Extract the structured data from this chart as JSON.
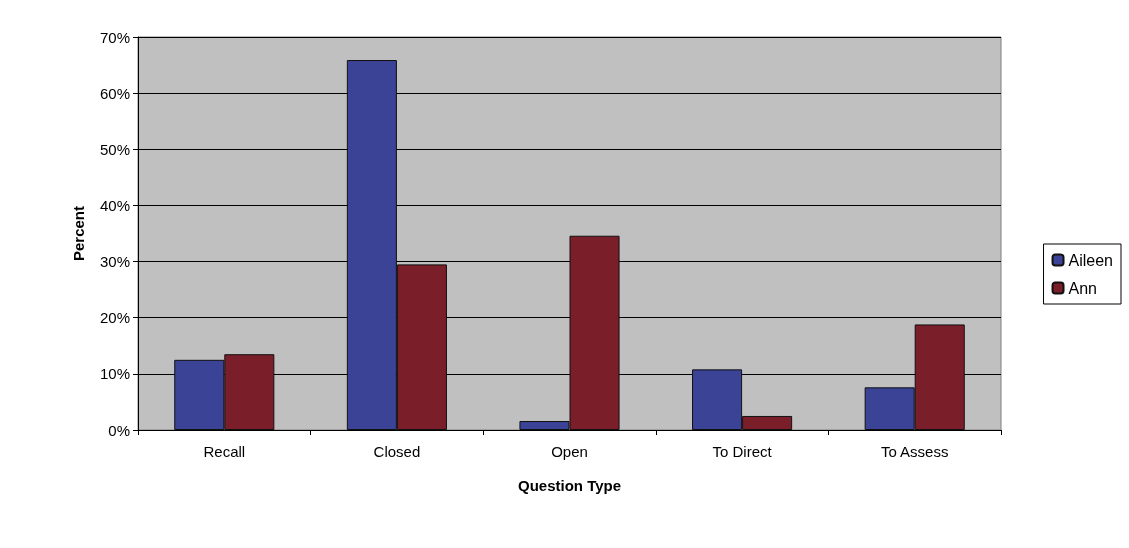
{
  "chart_data": {
    "type": "bar",
    "xlabel": "Question Type",
    "ylabel": "Percent",
    "categories": [
      "Recall",
      "Closed",
      "Open",
      "To Direct",
      "To Assess"
    ],
    "series": [
      {
        "name": "Aileen",
        "color": "#3b4396",
        "values": [
          12.5,
          65.9,
          1.6,
          10.8,
          7.6
        ]
      },
      {
        "name": "Ann",
        "color": "#7a1e2a",
        "values": [
          13.5,
          29.5,
          34.6,
          2.5,
          18.8
        ]
      }
    ],
    "ylim": [
      0,
      70
    ],
    "yticks": [
      {
        "value": 0,
        "label": "0%"
      },
      {
        "value": 10,
        "label": "10%"
      },
      {
        "value": 20,
        "label": "20%"
      },
      {
        "value": 30,
        "label": "30%"
      },
      {
        "value": 40,
        "label": "40%"
      },
      {
        "value": 50,
        "label": "50%"
      },
      {
        "value": 60,
        "label": "60%"
      },
      {
        "value": 70,
        "label": "70%"
      }
    ],
    "grid": "y",
    "legend": "right"
  }
}
